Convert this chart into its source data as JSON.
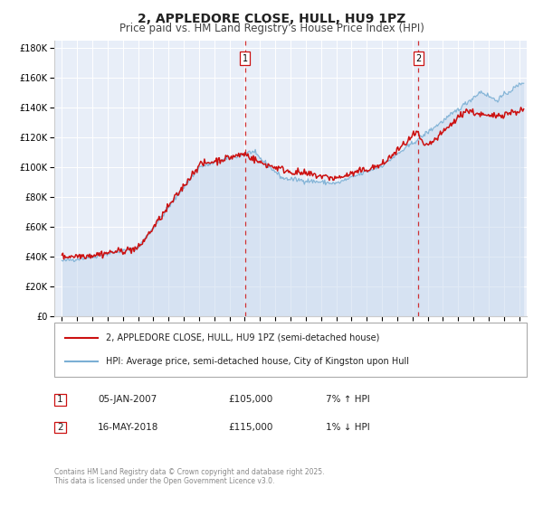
{
  "title": "2, APPLEDORE CLOSE, HULL, HU9 1PZ",
  "subtitle": "Price paid vs. HM Land Registry's House Price Index (HPI)",
  "title_fontsize": 10,
  "subtitle_fontsize": 8.5,
  "background_color": "#ffffff",
  "plot_bg_color": "#e8eef8",
  "grid_color": "#ffffff",
  "hpi_line_color": "#7bafd4",
  "hpi_fill_color": "#c5d8ee",
  "price_line_color": "#cc1111",
  "vline_color": "#cc1111",
  "legend_entries": [
    "2, APPLEDORE CLOSE, HULL, HU9 1PZ (semi-detached house)",
    "HPI: Average price, semi-detached house, City of Kingston upon Hull"
  ],
  "copyright_text": "Contains HM Land Registry data © Crown copyright and database right 2025.\nThis data is licensed under the Open Government Licence v3.0.",
  "ylim": [
    0,
    185000
  ],
  "yticks": [
    0,
    20000,
    40000,
    60000,
    80000,
    100000,
    120000,
    140000,
    160000,
    180000
  ],
  "ytick_labels": [
    "£0",
    "£20K",
    "£40K",
    "£60K",
    "£80K",
    "£100K",
    "£120K",
    "£140K",
    "£160K",
    "£180K"
  ],
  "xlim_start": 1994.5,
  "xlim_end": 2025.5,
  "transaction1_date": 2007.02,
  "transaction2_date": 2018.38,
  "trans1_date_str": "05-JAN-2007",
  "trans1_price_str": "£105,000",
  "trans1_hpi_str": "7% ↑ HPI",
  "trans2_date_str": "16-MAY-2018",
  "trans2_price_str": "£115,000",
  "trans2_hpi_str": "1% ↓ HPI"
}
